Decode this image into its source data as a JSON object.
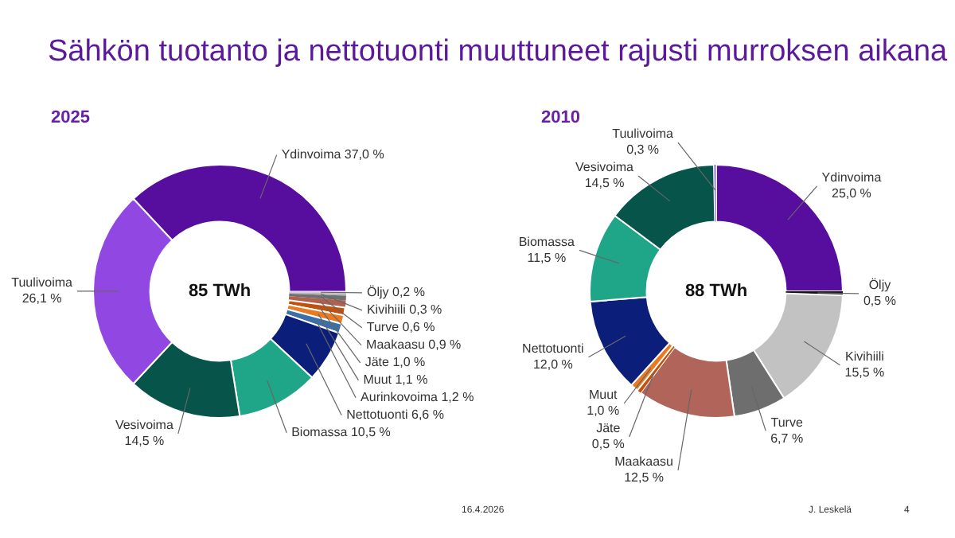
{
  "chart_data": [
    {
      "type": "donut",
      "title": "2025",
      "categories": [
        "Ydinvoima",
        "Öljy",
        "Kivihiili",
        "Turve",
        "Maakaasu",
        "Jäte",
        "Muut",
        "Aurinkovoima",
        "Nettotuonti",
        "Biomassa",
        "Vesivoima",
        "Tuulivoima"
      ],
      "values": [
        37.0,
        0.2,
        0.3,
        0.6,
        0.9,
        1.0,
        1.1,
        1.2,
        6.6,
        10.5,
        14.5,
        26.1
      ],
      "colors": [
        "#570d9e",
        "#d9c9e6",
        "#b8b8b8",
        "#707070",
        "#b0604f",
        "#c4500e",
        "#ea7a22",
        "#3b6fa8",
        "#0b1f7a",
        "#1fa688",
        "#07544a",
        "#9148e2"
      ],
      "value_labels": [
        "37,0 %",
        "0,2 %",
        "0,3 %",
        "0,6 %",
        "0,9 %",
        "1,0 %",
        "1,1 %",
        "1,2 %",
        "6,6 %",
        "10,5 %",
        "14,5 %",
        "26,1 %"
      ],
      "annotations": [
        "85 TWh",
        "Sähkön tuotanto ja nettotuonti muuttuneet rajusti murroksen aikana"
      ]
    },
    {
      "type": "donut",
      "title": "2010",
      "categories": [
        "Ydinvoima",
        "Öljy",
        "Kivihiili",
        "Turve",
        "Maakaasu",
        "Jäte",
        "Muut",
        "Nettotuonti",
        "Biomassa",
        "Vesivoima",
        "Tuulivoima"
      ],
      "values": [
        25.0,
        0.5,
        15.5,
        6.7,
        12.5,
        0.5,
        1.0,
        12.0,
        11.5,
        14.5,
        0.3
      ],
      "colors": [
        "#570d9e",
        "#111111",
        "#c2c2c2",
        "#6e6e6e",
        "#b0645a",
        "#c4500e",
        "#ea7a22",
        "#0b1f7a",
        "#1fa688",
        "#07544a",
        "#b79be0"
      ],
      "value_labels": [
        "25,0 %",
        "0,5 %",
        "15,5 %",
        "6,7 %",
        "12,5 %",
        "0,5 %",
        "1,0 %",
        "12,0 %",
        "11,5 %",
        "14,5 %",
        "0,3 %"
      ],
      "annotations": [
        "88 TWh",
        "16.4.2026",
        "J. Leskelä",
        "4"
      ]
    }
  ]
}
